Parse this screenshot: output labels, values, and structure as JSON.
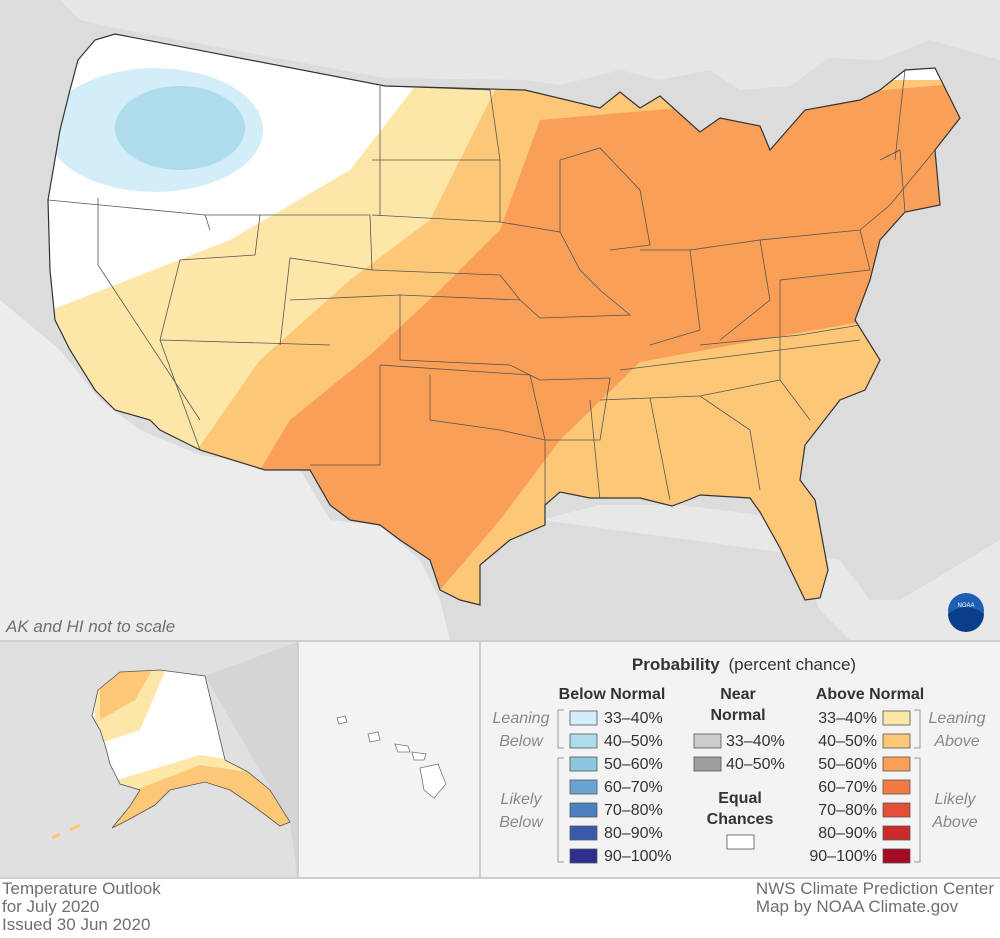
{
  "note": "AK and HI not to scale",
  "legend": {
    "title": "Probability",
    "subtitle": "(percent chance)",
    "below_heading": "Below Normal",
    "near_heading_line1": "Near",
    "near_heading_line2": "Normal",
    "above_heading": "Above Normal",
    "equal_line1": "Equal",
    "equal_line2": "Chances",
    "leaning_below": [
      "Leaning",
      "Below"
    ],
    "likely_below": [
      "Likely",
      "Below"
    ],
    "leaning_above": [
      "Leaning",
      "Above"
    ],
    "likely_above": [
      "Likely",
      "Above"
    ],
    "below": [
      {
        "label": "33–40%",
        "color": "#d3eef8"
      },
      {
        "label": "40–50%",
        "color": "#aedcec"
      },
      {
        "label": "50–60%",
        "color": "#8fc6df"
      },
      {
        "label": "60–70%",
        "color": "#6aa4d0"
      },
      {
        "label": "70–80%",
        "color": "#4c7ec0"
      },
      {
        "label": "80–90%",
        "color": "#3b59ab"
      },
      {
        "label": "90–100%",
        "color": "#2c2f8e"
      }
    ],
    "near": [
      {
        "label": "33–40%",
        "color": "#cccccc"
      },
      {
        "label": "40–50%",
        "color": "#9e9e9e"
      }
    ],
    "above": [
      {
        "label": "33–40%",
        "color": "#fde7a8"
      },
      {
        "label": "40–50%",
        "color": "#fcc878"
      },
      {
        "label": "50–60%",
        "color": "#fa9f58"
      },
      {
        "label": "60–70%",
        "color": "#f47a45"
      },
      {
        "label": "70–80%",
        "color": "#e44e35"
      },
      {
        "label": "80–90%",
        "color": "#cb2a2c"
      },
      {
        "label": "90–100%",
        "color": "#a50b22"
      }
    ],
    "equal_color": "#ffffff"
  },
  "footer": {
    "left": [
      "Temperature Outlook",
      "for July 2020",
      "Issued 30 Jun 2020"
    ],
    "right": [
      "NWS Climate Prediction Center",
      "Map by NOAA Climate.gov"
    ]
  },
  "logo_text": "NOAA"
}
